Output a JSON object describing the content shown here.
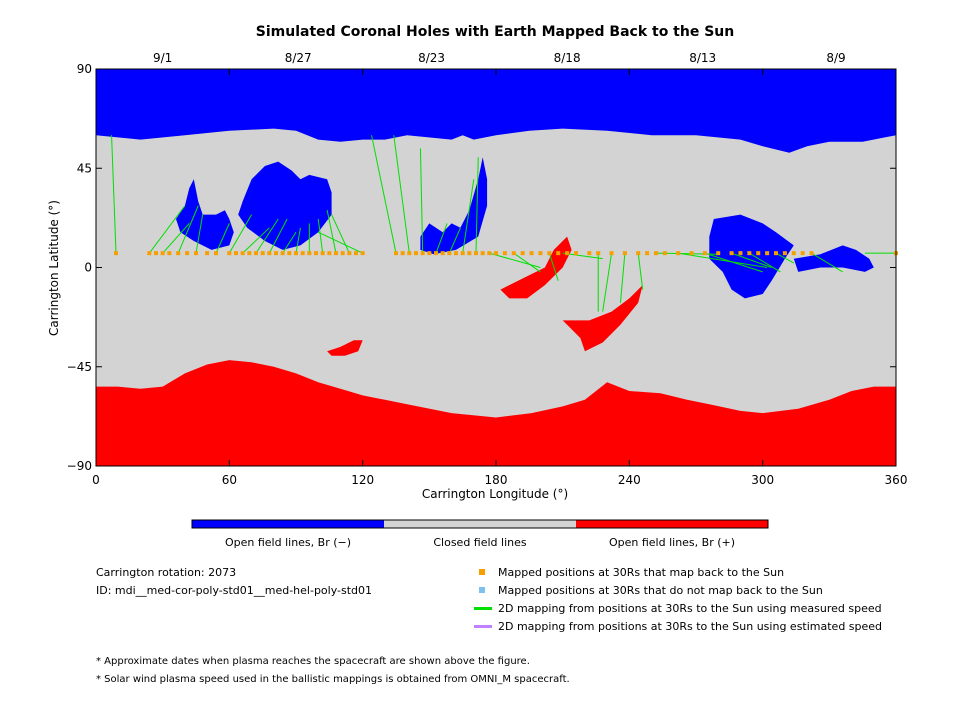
{
  "chart_data": {
    "type": "heatmap",
    "title": "Simulated Coronal Holes with Earth Mapped Back to the Sun",
    "xlabel": "Carrington Longitude (°)",
    "ylabel": "Carrington Latitude (°)",
    "xlim": [
      0,
      360
    ],
    "ylim": [
      -90,
      90
    ],
    "x_ticks": [
      0,
      60,
      120,
      180,
      240,
      300,
      360
    ],
    "y_ticks": [
      -90,
      -45,
      0,
      45,
      90
    ],
    "y_tick_labels": [
      "−90",
      "−45",
      "0",
      "45",
      "90"
    ],
    "top_axis_dates": [
      {
        "label": "9/1",
        "lon": 30
      },
      {
        "label": "8/27",
        "lon": 91
      },
      {
        "label": "8/23",
        "lon": 151
      },
      {
        "label": "8/18",
        "lon": 212
      },
      {
        "label": "8/13",
        "lon": 273
      },
      {
        "label": "8/9",
        "lon": 333
      }
    ],
    "colorbar": [
      {
        "label": "Open field lines, Br (−)",
        "color": "#0000ff"
      },
      {
        "label": "Closed field lines",
        "color": "#d3d3d3"
      },
      {
        "label": "Open field lines, Br (+)",
        "color": "#ff0000"
      }
    ],
    "regions": [
      {
        "polarity": "negative",
        "name": "north polar hole",
        "pts": [
          [
            0,
            90
          ],
          [
            360,
            90
          ],
          [
            360,
            60
          ],
          [
            345,
            57
          ],
          [
            330,
            57
          ],
          [
            320,
            55
          ],
          [
            312,
            52
          ],
          [
            300,
            55
          ],
          [
            290,
            58
          ],
          [
            270,
            60
          ],
          [
            250,
            60
          ],
          [
            230,
            62
          ],
          [
            210,
            63
          ],
          [
            195,
            62
          ],
          [
            180,
            60
          ],
          [
            170,
            58
          ],
          [
            165,
            60
          ],
          [
            160,
            58
          ],
          [
            140,
            60
          ],
          [
            130,
            58
          ],
          [
            120,
            58
          ],
          [
            110,
            57
          ],
          [
            100,
            58
          ],
          [
            90,
            62
          ],
          [
            80,
            63
          ],
          [
            60,
            62
          ],
          [
            40,
            60
          ],
          [
            20,
            58
          ],
          [
            0,
            60
          ]
        ]
      },
      {
        "polarity": "negative",
        "name": "low-latitude lobe 1",
        "pts": [
          [
            40,
            28
          ],
          [
            42,
            36
          ],
          [
            44,
            40
          ],
          [
            46,
            30
          ],
          [
            48,
            24
          ],
          [
            54,
            24
          ],
          [
            58,
            26
          ],
          [
            60,
            22
          ],
          [
            62,
            16
          ],
          [
            60,
            10
          ],
          [
            52,
            8
          ],
          [
            44,
            12
          ],
          [
            38,
            16
          ],
          [
            36,
            22
          ]
        ]
      },
      {
        "polarity": "negative",
        "name": "low-latitude lobe 2",
        "pts": [
          [
            66,
            30
          ],
          [
            70,
            40
          ],
          [
            76,
            46
          ],
          [
            82,
            48
          ],
          [
            88,
            44
          ],
          [
            92,
            40
          ],
          [
            96,
            42
          ],
          [
            104,
            40
          ],
          [
            106,
            34
          ],
          [
            106,
            24
          ],
          [
            100,
            16
          ],
          [
            92,
            10
          ],
          [
            84,
            8
          ],
          [
            76,
            12
          ],
          [
            68,
            18
          ],
          [
            64,
            24
          ]
        ]
      },
      {
        "polarity": "negative",
        "name": "hole 3",
        "pts": [
          [
            146,
            14
          ],
          [
            150,
            20
          ],
          [
            156,
            16
          ],
          [
            160,
            20
          ],
          [
            164,
            18
          ],
          [
            168,
            26
          ],
          [
            172,
            40
          ],
          [
            174,
            50
          ],
          [
            176,
            40
          ],
          [
            176,
            28
          ],
          [
            172,
            14
          ],
          [
            162,
            8
          ],
          [
            152,
            6
          ],
          [
            146,
            8
          ]
        ]
      },
      {
        "polarity": "negative",
        "name": "hole 4",
        "pts": [
          [
            276,
            14
          ],
          [
            278,
            22
          ],
          [
            290,
            24
          ],
          [
            300,
            20
          ],
          [
            306,
            16
          ],
          [
            314,
            10
          ],
          [
            310,
            4
          ],
          [
            304,
            -6
          ],
          [
            300,
            -12
          ],
          [
            292,
            -14
          ],
          [
            286,
            -10
          ],
          [
            282,
            -2
          ],
          [
            276,
            4
          ]
        ]
      },
      {
        "polarity": "negative",
        "name": "hole 5",
        "pts": [
          [
            314,
            4
          ],
          [
            326,
            6
          ],
          [
            336,
            10
          ],
          [
            342,
            8
          ],
          [
            348,
            4
          ],
          [
            350,
            0
          ],
          [
            346,
            -2
          ],
          [
            336,
            0
          ],
          [
            326,
            0
          ],
          [
            316,
            -2
          ]
        ]
      },
      {
        "polarity": "positive",
        "name": "south polar hole",
        "pts": [
          [
            0,
            -90
          ],
          [
            360,
            -90
          ],
          [
            360,
            -54
          ],
          [
            350,
            -54
          ],
          [
            340,
            -56
          ],
          [
            330,
            -60
          ],
          [
            316,
            -64
          ],
          [
            300,
            -66
          ],
          [
            290,
            -65
          ],
          [
            276,
            -62
          ],
          [
            266,
            -60
          ],
          [
            254,
            -57
          ],
          [
            240,
            -56
          ],
          [
            230,
            -52
          ],
          [
            220,
            -60
          ],
          [
            210,
            -63
          ],
          [
            196,
            -66
          ],
          [
            180,
            -68
          ],
          [
            160,
            -66
          ],
          [
            140,
            -62
          ],
          [
            130,
            -60
          ],
          [
            120,
            -58
          ],
          [
            110,
            -55
          ],
          [
            100,
            -52
          ],
          [
            90,
            -48
          ],
          [
            80,
            -45
          ],
          [
            70,
            -43
          ],
          [
            60,
            -42
          ],
          [
            50,
            -44
          ],
          [
            40,
            -48
          ],
          [
            30,
            -54
          ],
          [
            20,
            -55
          ],
          [
            10,
            -54
          ],
          [
            0,
            -54
          ]
        ]
      },
      {
        "polarity": "positive",
        "name": "hole 6",
        "pts": [
          [
            182,
            -10
          ],
          [
            186,
            -8
          ],
          [
            194,
            -4
          ],
          [
            202,
            0
          ],
          [
            206,
            8
          ],
          [
            212,
            14
          ],
          [
            214,
            8
          ],
          [
            210,
            0
          ],
          [
            202,
            -8
          ],
          [
            194,
            -14
          ],
          [
            186,
            -14
          ]
        ]
      },
      {
        "polarity": "positive",
        "name": "hole 7",
        "pts": [
          [
            210,
            -24
          ],
          [
            222,
            -24
          ],
          [
            232,
            -20
          ],
          [
            240,
            -14
          ],
          [
            246,
            -8
          ],
          [
            244,
            -16
          ],
          [
            236,
            -26
          ],
          [
            228,
            -34
          ],
          [
            220,
            -38
          ],
          [
            218,
            -32
          ],
          [
            214,
            -28
          ]
        ]
      },
      {
        "polarity": "positive",
        "name": "hole 8",
        "pts": [
          [
            104,
            -38
          ],
          [
            110,
            -36
          ],
          [
            116,
            -33
          ],
          [
            120,
            -33
          ],
          [
            118,
            -38
          ],
          [
            112,
            -40
          ],
          [
            106,
            -40
          ]
        ]
      }
    ],
    "mapped_latitude": 6.5,
    "mapped_positions_lon": [
      9,
      24,
      27,
      30,
      33,
      37,
      41,
      45,
      50,
      54,
      60,
      63,
      66,
      69,
      72,
      75,
      78,
      81,
      84,
      87,
      90,
      93,
      96,
      99,
      102,
      105,
      108,
      111,
      114,
      117,
      120,
      135,
      138,
      141,
      144,
      147,
      150,
      153,
      156,
      159,
      162,
      165,
      168,
      171,
      174,
      177,
      180,
      184,
      188,
      192,
      196,
      200,
      204,
      208,
      212,
      216,
      222,
      226,
      232,
      238,
      244,
      248,
      252,
      256,
      262,
      268,
      274,
      280,
      286,
      290,
      294,
      298,
      302,
      306,
      310,
      314,
      318,
      322,
      360
    ],
    "mapping_lines": [
      [
        [
          9,
          6.5
        ],
        [
          7,
          60
        ]
      ],
      [
        [
          24,
          6.5
        ],
        [
          40,
          28
        ]
      ],
      [
        [
          30,
          6.5
        ],
        [
          42,
          20
        ]
      ],
      [
        [
          37,
          6.5
        ],
        [
          46,
          28
        ]
      ],
      [
        [
          45,
          6.5
        ],
        [
          48,
          24
        ]
      ],
      [
        [
          54,
          6.5
        ],
        [
          60,
          20
        ]
      ],
      [
        [
          60,
          6.5
        ],
        [
          70,
          24
        ]
      ],
      [
        [
          66,
          6.5
        ],
        [
          78,
          18
        ]
      ],
      [
        [
          72,
          6.5
        ],
        [
          82,
          22
        ]
      ],
      [
        [
          78,
          6.5
        ],
        [
          86,
          22
        ]
      ],
      [
        [
          84,
          6.5
        ],
        [
          90,
          16
        ]
      ],
      [
        [
          90,
          6.5
        ],
        [
          92,
          18
        ]
      ],
      [
        [
          96,
          6.5
        ],
        [
          96,
          20
        ]
      ],
      [
        [
          102,
          6.5
        ],
        [
          100,
          22
        ]
      ],
      [
        [
          108,
          6.5
        ],
        [
          104,
          26
        ]
      ],
      [
        [
          114,
          6.5
        ],
        [
          106,
          24
        ]
      ],
      [
        [
          120,
          6.5
        ],
        [
          100,
          16
        ]
      ],
      [
        [
          135,
          6.5
        ],
        [
          124,
          60
        ]
      ],
      [
        [
          141,
          6.5
        ],
        [
          134,
          60
        ]
      ],
      [
        [
          147,
          6.5
        ],
        [
          146,
          54
        ]
      ],
      [
        [
          153,
          6.5
        ],
        [
          158,
          20
        ]
      ],
      [
        [
          159,
          6.5
        ],
        [
          164,
          18
        ]
      ],
      [
        [
          165,
          6.5
        ],
        [
          170,
          40
        ]
      ],
      [
        [
          171,
          6.5
        ],
        [
          172,
          50
        ]
      ],
      [
        [
          177,
          6.5
        ],
        [
          200,
          0
        ]
      ],
      [
        [
          188,
          6.5
        ],
        [
          200,
          -2
        ]
      ],
      [
        [
          204,
          6.5
        ],
        [
          208,
          -6
        ]
      ],
      [
        [
          210,
          6.5
        ],
        [
          228,
          4
        ]
      ],
      [
        [
          226,
          6.5
        ],
        [
          226,
          -20
        ]
      ],
      [
        [
          232,
          6.5
        ],
        [
          228,
          -20
        ]
      ],
      [
        [
          238,
          6.5
        ],
        [
          236,
          -16
        ]
      ],
      [
        [
          244,
          6.5
        ],
        [
          246,
          -10
        ]
      ],
      [
        [
          252,
          6.5
        ],
        [
          280,
          6
        ]
      ],
      [
        [
          262,
          6.5
        ],
        [
          302,
          0
        ]
      ],
      [
        [
          274,
          6.5
        ],
        [
          300,
          -2
        ]
      ],
      [
        [
          286,
          6.5
        ],
        [
          304,
          0
        ]
      ],
      [
        [
          294,
          6.5
        ],
        [
          308,
          -2
        ]
      ],
      [
        [
          306,
          6.5
        ],
        [
          314,
          2
        ]
      ],
      [
        [
          322,
          6.5
        ],
        [
          336,
          -2
        ]
      ],
      [
        [
          346,
          6.5
        ],
        [
          360,
          6.5
        ]
      ]
    ]
  },
  "info": {
    "rotation": "Carrington rotation: 2073",
    "id": "ID: mdi__med-cor-poly-std01__med-hel-poly-std01"
  },
  "legend": [
    {
      "kind": "square",
      "color": "#f5a000",
      "label": "Mapped positions at 30Rs that map back to the Sun"
    },
    {
      "kind": "square",
      "color": "#7ec0ee",
      "label": "Mapped positions at 30Rs that do not map back to the Sun"
    },
    {
      "kind": "line",
      "color": "#00e000",
      "label": "2D mapping from positions at 30Rs to the Sun using measured speed"
    },
    {
      "kind": "line",
      "color": "#c080ff",
      "label": "2D mapping from positions at 30Rs to the Sun using estimated speed"
    }
  ],
  "notes": [
    "* Approximate dates when plasma reaches the spacecraft are shown above the figure.",
    "* Solar wind plasma speed used in the ballistic mappings is obtained from OMNI_M spacecraft."
  ]
}
